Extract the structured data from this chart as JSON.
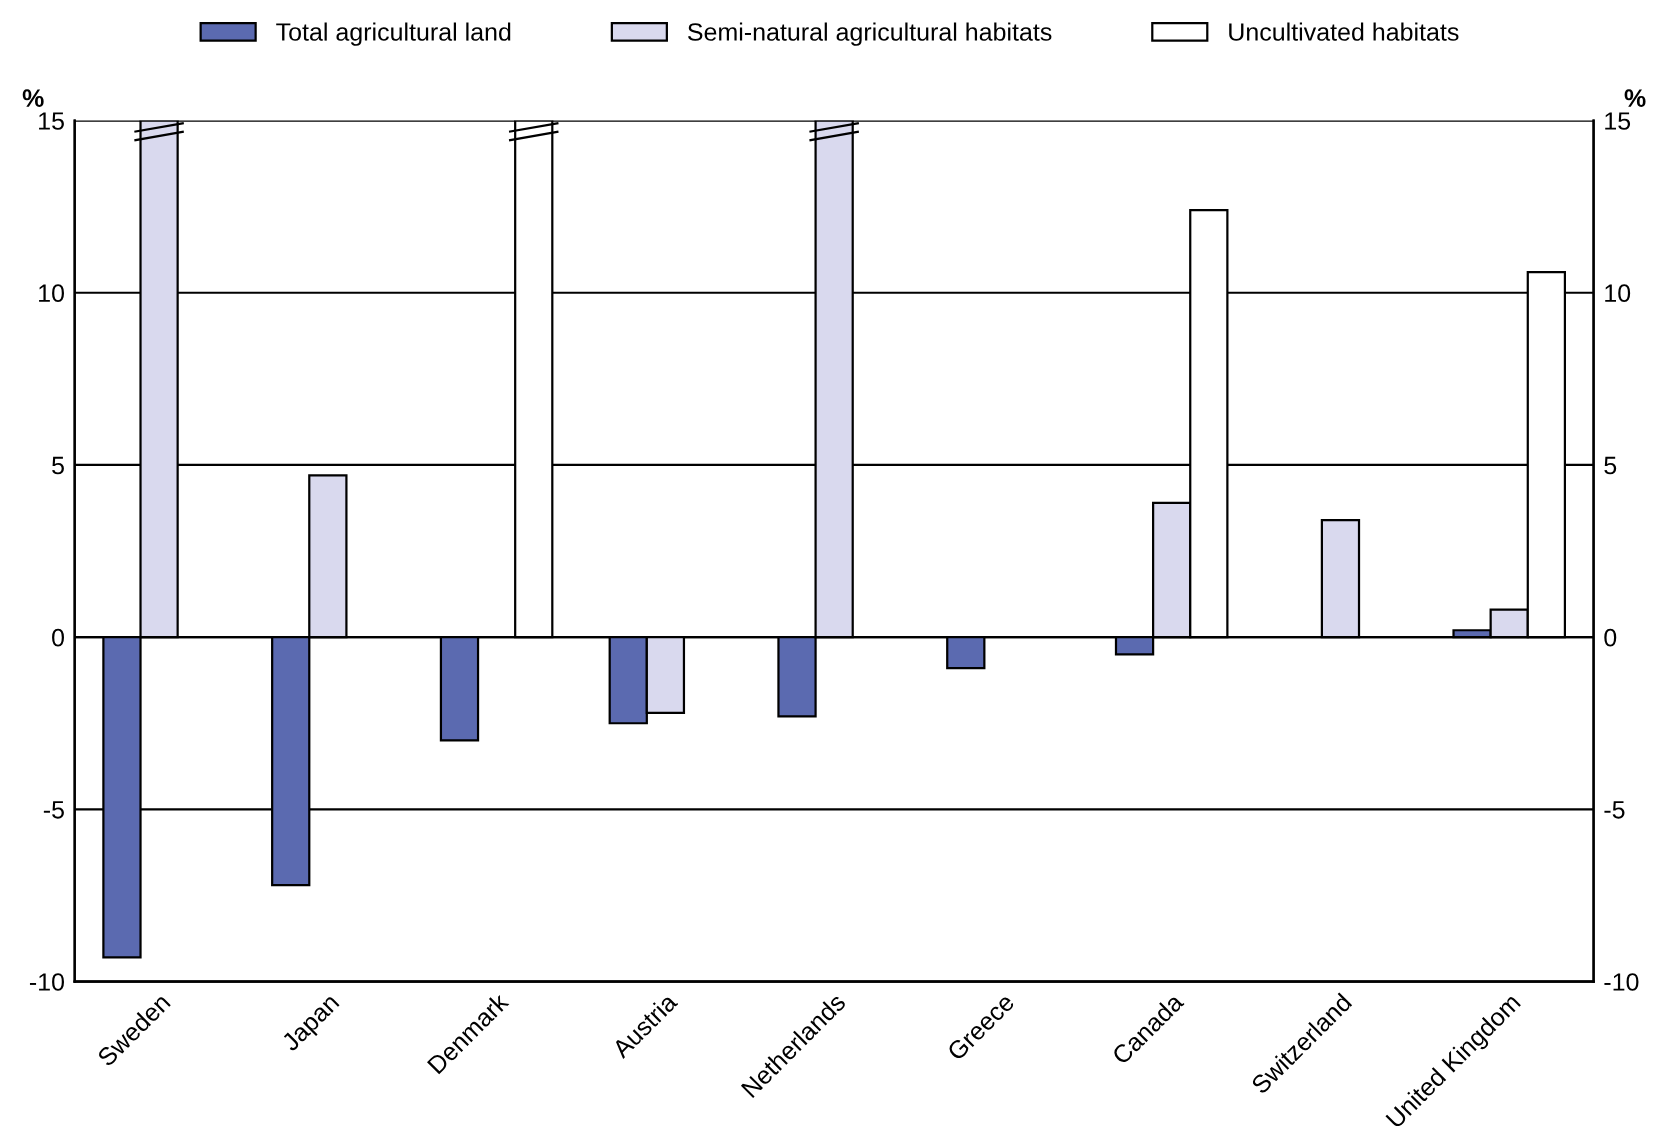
{
  "chart_data": {
    "type": "bar",
    "ylabel": "%",
    "y2label": "%",
    "categories": [
      "Sweden",
      "Japan",
      "Denmark",
      "Austria",
      "Netherlands",
      "Greece",
      "Canada",
      "Switzerland",
      "United Kingdom"
    ],
    "series": [
      {
        "name": "Total agricultural land",
        "color": "#5b6ab0",
        "values": [
          -9.3,
          -7.2,
          -3.0,
          -2.5,
          -2.3,
          -0.9,
          -0.5,
          null,
          0.2
        ]
      },
      {
        "name": "Semi-natural agricultural habitats",
        "color": "#d9d9ee",
        "values": [
          15,
          4.7,
          null,
          -2.2,
          15,
          null,
          3.9,
          3.4,
          0.8
        ]
      },
      {
        "name": "Uncultivated habitats",
        "color": "#ffffff",
        "values": [
          null,
          null,
          15,
          null,
          null,
          null,
          12.4,
          null,
          10.6
        ]
      }
    ],
    "ylim": [
      -10,
      15
    ],
    "yticks": [
      -10,
      -5,
      0,
      5,
      10,
      15
    ],
    "y2lim": [
      -10,
      15
    ],
    "y2ticks": [
      -10,
      -5,
      0,
      5,
      10,
      15
    ],
    "grid": "y",
    "legend": "top"
  }
}
